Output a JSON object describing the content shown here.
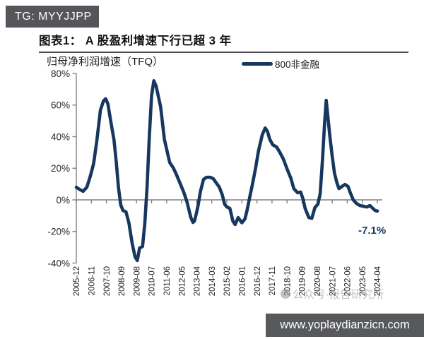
{
  "badge": {
    "text": "TG: MYYJJPP"
  },
  "figure": {
    "title": "图表1： A 股盈利增速下行已超 3 年"
  },
  "chart_data": {
    "type": "line",
    "title": "归母净利润增速（TFQ）",
    "legend_position": "top-right",
    "grid": false,
    "y_axis": {
      "tick_labels": [
        "80%",
        "60%",
        "40%",
        "20%",
        "0%",
        "-20%",
        "-40%"
      ],
      "tick_values": [
        80,
        60,
        40,
        20,
        0,
        -20,
        -40
      ],
      "ylim": [
        -40,
        80
      ]
    },
    "x_axis": {
      "labels": [
        "2005-12",
        "2006-11",
        "2007-10",
        "2008-09",
        "2009-08",
        "2010-07",
        "2011-06",
        "2012-05",
        "2013-04",
        "2014-03",
        "2015-02",
        "2016-01",
        "2016-12",
        "2017-11",
        "2018-10",
        "2019-09",
        "2020-08",
        "2021-07",
        "2022-06",
        "2023-05",
        "2024-04"
      ]
    },
    "series": [
      {
        "name": "800非金融",
        "color": "#17375e",
        "points": [
          [
            0,
            8
          ],
          [
            0.2,
            6.7
          ],
          [
            0.45,
            5.4
          ],
          [
            0.7,
            8
          ],
          [
            0.95,
            15.6
          ],
          [
            1.15,
            23
          ],
          [
            1.35,
            36.6
          ],
          [
            1.6,
            56.7
          ],
          [
            1.8,
            62.5
          ],
          [
            1.95,
            64
          ],
          [
            2.1,
            60.7
          ],
          [
            2.3,
            49
          ],
          [
            2.5,
            38
          ],
          [
            2.65,
            24.5
          ],
          [
            2.8,
            8
          ],
          [
            2.95,
            -3.1
          ],
          [
            3.1,
            -6.7
          ],
          [
            3.3,
            -7.6
          ],
          [
            3.5,
            -15
          ],
          [
            3.7,
            -27
          ],
          [
            3.9,
            -36
          ],
          [
            4.05,
            -38.4
          ],
          [
            4.2,
            -30.5
          ],
          [
            4.4,
            -29.5
          ],
          [
            4.55,
            -15
          ],
          [
            4.7,
            8
          ],
          [
            4.85,
            40
          ],
          [
            5.0,
            66
          ],
          [
            5.15,
            75.4
          ],
          [
            5.3,
            72
          ],
          [
            5.6,
            58.9
          ],
          [
            5.85,
            38.4
          ],
          [
            6.2,
            23.7
          ],
          [
            6.45,
            20.1
          ],
          [
            6.65,
            16.1
          ],
          [
            6.9,
            10.3
          ],
          [
            7.15,
            4.5
          ],
          [
            7.35,
            -1.3
          ],
          [
            7.5,
            -7.1
          ],
          [
            7.6,
            -11
          ],
          [
            7.75,
            -14.3
          ],
          [
            7.85,
            -13.4
          ],
          [
            8.0,
            -7.6
          ],
          [
            8.1,
            -3.1
          ],
          [
            8.25,
            5.4
          ],
          [
            8.45,
            12.9
          ],
          [
            8.65,
            14.3
          ],
          [
            8.9,
            14.3
          ],
          [
            9.1,
            13.4
          ],
          [
            9.3,
            10.7
          ],
          [
            9.5,
            8
          ],
          [
            9.7,
            3.1
          ],
          [
            9.85,
            -2.7
          ],
          [
            10.0,
            -4.5
          ],
          [
            10.2,
            -5.4
          ],
          [
            10.4,
            -13.4
          ],
          [
            10.55,
            -15.6
          ],
          [
            10.75,
            -11.2
          ],
          [
            11.0,
            -14.5
          ],
          [
            11.2,
            -12.1
          ],
          [
            11.35,
            -6.3
          ],
          [
            11.5,
            0.9
          ],
          [
            11.7,
            9.8
          ],
          [
            11.9,
            19.6
          ],
          [
            12.1,
            30.8
          ],
          [
            12.35,
            41.1
          ],
          [
            12.55,
            45.5
          ],
          [
            12.7,
            43.3
          ],
          [
            12.85,
            38.4
          ],
          [
            13.05,
            34.8
          ],
          [
            13.3,
            33.5
          ],
          [
            13.5,
            30.4
          ],
          [
            13.75,
            25.9
          ],
          [
            14.0,
            19.6
          ],
          [
            14.25,
            13.8
          ],
          [
            14.45,
            7.1
          ],
          [
            14.7,
            4.5
          ],
          [
            14.9,
            4.9
          ],
          [
            15.05,
            0.9
          ],
          [
            15.2,
            -5.4
          ],
          [
            15.45,
            -11.2
          ],
          [
            15.65,
            -11.6
          ],
          [
            15.85,
            -4.9
          ],
          [
            16.05,
            -2.7
          ],
          [
            16.2,
            4
          ],
          [
            16.35,
            25
          ],
          [
            16.5,
            49
          ],
          [
            16.6,
            63
          ],
          [
            16.7,
            54
          ],
          [
            16.85,
            39.7
          ],
          [
            17.0,
            27.7
          ],
          [
            17.15,
            17
          ],
          [
            17.3,
            11.2
          ],
          [
            17.45,
            7.1
          ],
          [
            17.65,
            8.5
          ],
          [
            17.85,
            9.8
          ],
          [
            18.05,
            8.5
          ],
          [
            18.2,
            4.5
          ],
          [
            18.4,
            0
          ],
          [
            18.6,
            -2.2
          ],
          [
            18.85,
            -3.6
          ],
          [
            19.05,
            -4
          ],
          [
            19.3,
            -4.5
          ],
          [
            19.5,
            -3.6
          ],
          [
            19.65,
            -4.9
          ],
          [
            19.85,
            -6.7
          ],
          [
            20,
            -7.1
          ]
        ]
      }
    ],
    "annotation": {
      "text": "-7.1%",
      "color": "#17375e"
    },
    "watermark": "公众号·报告研究所",
    "colors": {
      "line": "#17375e",
      "axis": "#808080",
      "text": "#262626"
    }
  },
  "footer": {
    "url": "www.yoplaydianzicn.com"
  }
}
